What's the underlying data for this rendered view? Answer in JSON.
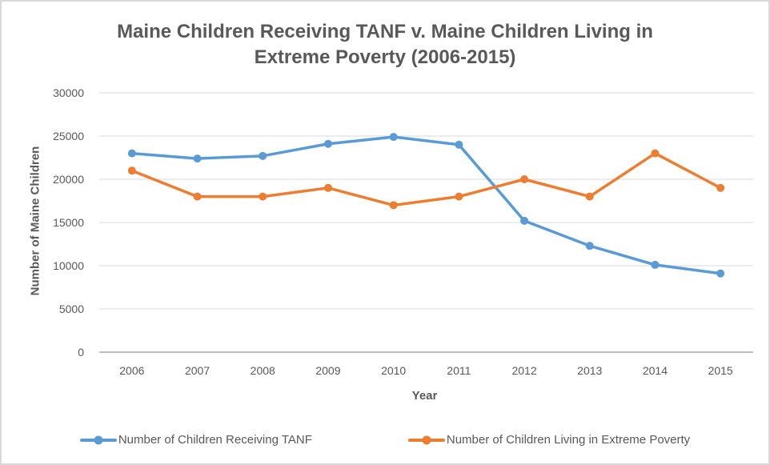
{
  "title_lines": [
    "Maine Children Receiving TANF v. Maine Children Living in",
    "Extreme Poverty (2006-2015)"
  ],
  "colors": {
    "tanf_blue": "#5B9BD5",
    "poverty_orange": "#ED7D31",
    "text_gray": "#595959",
    "gridline": "#D9D9D9",
    "axis_line": "#BFBFBF"
  },
  "chart_data": {
    "type": "line",
    "title": "Maine Children Receiving TANF v. Maine Children Living in Extreme Poverty (2006-2015)",
    "xlabel": "Year",
    "ylabel": "Number of Maine Children",
    "categories": [
      "2006",
      "2007",
      "2008",
      "2009",
      "2010",
      "2011",
      "2012",
      "2013",
      "2014",
      "2015"
    ],
    "series": [
      {
        "name": "Number of Children Receiving TANF",
        "color": "#5B9BD5",
        "values": [
          23000,
          22400,
          22700,
          24100,
          24900,
          24000,
          15200,
          12300,
          10100,
          9100
        ]
      },
      {
        "name": "Number of Children Living in Extreme Poverty",
        "color": "#ED7D31",
        "values": [
          21000,
          18000,
          18000,
          19000,
          17000,
          18000,
          20000,
          18000,
          23000,
          19000
        ]
      }
    ],
    "ylim": [
      0,
      30000
    ],
    "yticks": [
      0,
      5000,
      10000,
      15000,
      20000,
      25000,
      30000
    ],
    "grid": true,
    "marker": "circle",
    "legend_position": "bottom"
  }
}
